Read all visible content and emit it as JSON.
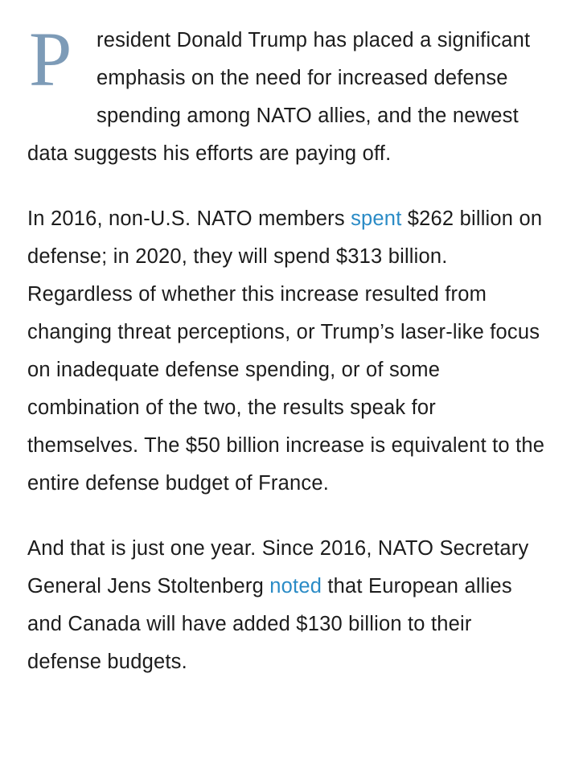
{
  "article": {
    "paragraph1": {
      "dropcap": "P",
      "text": "resident Donald Trump has placed a significant emphasis on the need for increased defense spending among NATO allies, and the newest data suggests his efforts are paying off."
    },
    "paragraph2": {
      "before_link": "In 2016, non-U.S. NATO members ",
      "link": "spent",
      "after_link": " $262 billion on defense; in 2020, they will spend $313 billion. Regardless of whether this increase resulted from changing threat perceptions, or Trump’s laser-like focus on inadequate defense spending, or of some combination of the two, the results speak for themselves. The $50 billion increase is equivalent to the entire defense budget of France."
    },
    "paragraph3": {
      "before_link": "And that is just one year. Since 2016, NATO Secretary General Jens Stoltenberg ",
      "link": "noted",
      "after_link": " that European allies and Canada will have added $130 billion to their defense budgets."
    }
  },
  "colors": {
    "dropcap": "#7d9bb7",
    "link": "#2a8bc6",
    "text": "#1c1c1c"
  }
}
